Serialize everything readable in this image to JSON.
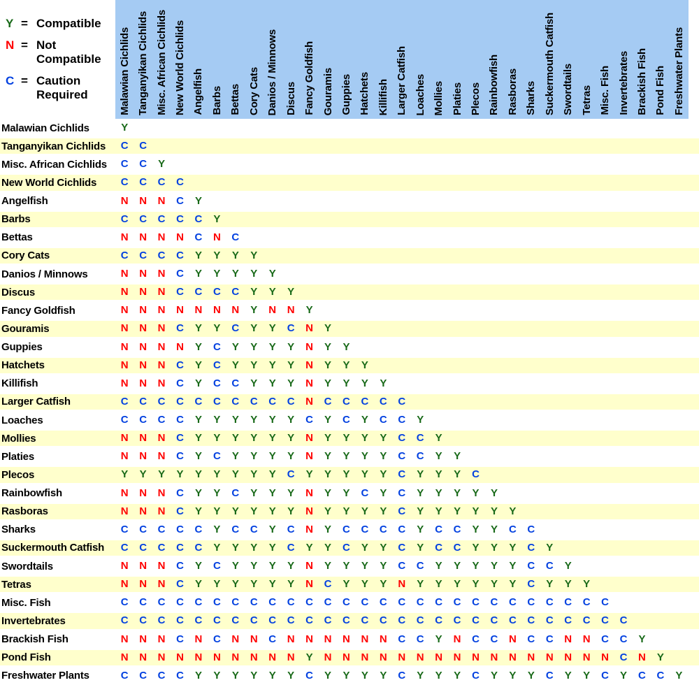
{
  "colors": {
    "header_bg": "#A5CBF3",
    "stripe_bg": "#FFFFCC",
    "compatible_green": "#186918",
    "not_compatible_red": "#FF0000",
    "caution_blue": "#0341E0"
  },
  "legend": {
    "equals": "=",
    "items": [
      {
        "symbol": "Y",
        "label": "Compatible"
      },
      {
        "symbol": "N",
        "label": "Not\nCompatible"
      },
      {
        "symbol": "C",
        "label": "Caution\nRequired"
      }
    ]
  },
  "chart_data": {
    "type": "table",
    "description": "Triangular species-by-species fish compatibility matrix",
    "legend": {
      "Y": "Compatible",
      "N": "Not Compatible",
      "C": "Caution Required"
    },
    "species": [
      "Malawian Cichlids",
      "Tanganyikan Cichlids",
      "Misc. African Cichlids",
      "New World Cichlids",
      "Angelfish",
      "Barbs",
      "Bettas",
      "Cory Cats",
      "Danios / Minnows",
      "Discus",
      "Fancy Goldfish",
      "Gouramis",
      "Guppies",
      "Hatchets",
      "Killifish",
      "Larger Catfish",
      "Loaches",
      "Mollies",
      "Platies",
      "Plecos",
      "Rainbowfish",
      "Rasboras",
      "Sharks",
      "Suckermouth Catfish",
      "Swordtails",
      "Tetras",
      "Misc. Fish",
      "Invertebrates",
      "Brackish Fish",
      "Pond Fish",
      "Freshwater Plants"
    ],
    "rows": [
      {
        "label": "Malawian Cichlids",
        "values": [
          "Y"
        ]
      },
      {
        "label": "Tanganyikan Cichlids",
        "values": [
          "C",
          "C"
        ]
      },
      {
        "label": "Misc. African Cichlids",
        "values": [
          "C",
          "C",
          "Y"
        ]
      },
      {
        "label": "New World Cichlids",
        "values": [
          "C",
          "C",
          "C",
          "C"
        ]
      },
      {
        "label": "Angelfish",
        "values": [
          "N",
          "N",
          "N",
          "C",
          "Y"
        ]
      },
      {
        "label": "Barbs",
        "values": [
          "C",
          "C",
          "C",
          "C",
          "C",
          "Y"
        ]
      },
      {
        "label": "Bettas",
        "values": [
          "N",
          "N",
          "N",
          "N",
          "C",
          "N",
          "C"
        ]
      },
      {
        "label": "Cory Cats",
        "values": [
          "C",
          "C",
          "C",
          "C",
          "Y",
          "Y",
          "Y",
          "Y"
        ]
      },
      {
        "label": "Danios / Minnows",
        "values": [
          "N",
          "N",
          "N",
          "C",
          "Y",
          "Y",
          "Y",
          "Y",
          "Y"
        ]
      },
      {
        "label": "Discus",
        "values": [
          "N",
          "N",
          "N",
          "C",
          "C",
          "C",
          "C",
          "Y",
          "Y",
          "Y"
        ]
      },
      {
        "label": "Fancy Goldfish",
        "values": [
          "N",
          "N",
          "N",
          "N",
          "N",
          "N",
          "N",
          "Y",
          "N",
          "N",
          "Y"
        ]
      },
      {
        "label": "Gouramis",
        "values": [
          "N",
          "N",
          "N",
          "C",
          "Y",
          "Y",
          "C",
          "Y",
          "Y",
          "C",
          "N",
          "Y"
        ]
      },
      {
        "label": "Guppies",
        "values": [
          "N",
          "N",
          "N",
          "N",
          "Y",
          "C",
          "Y",
          "Y",
          "Y",
          "Y",
          "N",
          "Y",
          "Y"
        ]
      },
      {
        "label": "Hatchets",
        "values": [
          "N",
          "N",
          "N",
          "C",
          "Y",
          "C",
          "Y",
          "Y",
          "Y",
          "Y",
          "N",
          "Y",
          "Y",
          "Y"
        ]
      },
      {
        "label": "Killifish",
        "values": [
          "N",
          "N",
          "N",
          "C",
          "Y",
          "C",
          "C",
          "Y",
          "Y",
          "Y",
          "N",
          "Y",
          "Y",
          "Y",
          "Y"
        ]
      },
      {
        "label": "Larger Catfish",
        "values": [
          "C",
          "C",
          "C",
          "C",
          "C",
          "C",
          "C",
          "C",
          "C",
          "C",
          "N",
          "C",
          "C",
          "C",
          "C",
          "C"
        ]
      },
      {
        "label": "Loaches",
        "values": [
          "C",
          "C",
          "C",
          "C",
          "Y",
          "Y",
          "Y",
          "Y",
          "Y",
          "Y",
          "C",
          "Y",
          "C",
          "Y",
          "C",
          "C",
          "Y"
        ]
      },
      {
        "label": "Mollies",
        "values": [
          "N",
          "N",
          "N",
          "C",
          "Y",
          "Y",
          "Y",
          "Y",
          "Y",
          "Y",
          "N",
          "Y",
          "Y",
          "Y",
          "Y",
          "C",
          "C",
          "Y"
        ]
      },
      {
        "label": "Platies",
        "values": [
          "N",
          "N",
          "N",
          "C",
          "Y",
          "C",
          "Y",
          "Y",
          "Y",
          "Y",
          "N",
          "Y",
          "Y",
          "Y",
          "Y",
          "C",
          "C",
          "Y",
          "Y"
        ]
      },
      {
        "label": "Plecos",
        "values": [
          "Y",
          "Y",
          "Y",
          "Y",
          "Y",
          "Y",
          "Y",
          "Y",
          "Y",
          "C",
          "Y",
          "Y",
          "Y",
          "Y",
          "Y",
          "C",
          "Y",
          "Y",
          "Y",
          "C"
        ]
      },
      {
        "label": "Rainbowfish",
        "values": [
          "N",
          "N",
          "N",
          "C",
          "Y",
          "Y",
          "C",
          "Y",
          "Y",
          "Y",
          "N",
          "Y",
          "Y",
          "C",
          "Y",
          "C",
          "Y",
          "Y",
          "Y",
          "Y",
          "Y"
        ]
      },
      {
        "label": "Rasboras",
        "values": [
          "N",
          "N",
          "N",
          "C",
          "Y",
          "Y",
          "Y",
          "Y",
          "Y",
          "Y",
          "N",
          "Y",
          "Y",
          "Y",
          "Y",
          "C",
          "Y",
          "Y",
          "Y",
          "Y",
          "Y",
          "Y"
        ]
      },
      {
        "label": "Sharks",
        "values": [
          "C",
          "C",
          "C",
          "C",
          "C",
          "Y",
          "C",
          "C",
          "Y",
          "C",
          "N",
          "Y",
          "C",
          "C",
          "C",
          "C",
          "Y",
          "C",
          "C",
          "Y",
          "Y",
          "C",
          "C"
        ]
      },
      {
        "label": "Suckermouth Catfish",
        "values": [
          "C",
          "C",
          "C",
          "C",
          "C",
          "Y",
          "Y",
          "Y",
          "Y",
          "C",
          "Y",
          "Y",
          "C",
          "Y",
          "Y",
          "C",
          "Y",
          "C",
          "C",
          "Y",
          "Y",
          "Y",
          "C",
          "Y"
        ]
      },
      {
        "label": "Swordtails",
        "values": [
          "N",
          "N",
          "N",
          "C",
          "Y",
          "C",
          "Y",
          "Y",
          "Y",
          "Y",
          "N",
          "Y",
          "Y",
          "Y",
          "Y",
          "C",
          "C",
          "Y",
          "Y",
          "Y",
          "Y",
          "Y",
          "C",
          "C",
          "Y"
        ]
      },
      {
        "label": "Tetras",
        "values": [
          "N",
          "N",
          "N",
          "C",
          "Y",
          "Y",
          "Y",
          "Y",
          "Y",
          "Y",
          "N",
          "C",
          "Y",
          "Y",
          "Y",
          "N",
          "Y",
          "Y",
          "Y",
          "Y",
          "Y",
          "Y",
          "C",
          "Y",
          "Y",
          "Y"
        ]
      },
      {
        "label": "Misc. Fish",
        "values": [
          "C",
          "C",
          "C",
          "C",
          "C",
          "C",
          "C",
          "C",
          "C",
          "C",
          "C",
          "C",
          "C",
          "C",
          "C",
          "C",
          "C",
          "C",
          "C",
          "C",
          "C",
          "C",
          "C",
          "C",
          "C",
          "C",
          "C"
        ]
      },
      {
        "label": "Invertebrates",
        "values": [
          "C",
          "C",
          "C",
          "C",
          "C",
          "C",
          "C",
          "C",
          "C",
          "C",
          "C",
          "C",
          "C",
          "C",
          "C",
          "C",
          "C",
          "C",
          "C",
          "C",
          "C",
          "C",
          "C",
          "C",
          "C",
          "C",
          "C",
          "C"
        ]
      },
      {
        "label": "Brackish Fish",
        "values": [
          "N",
          "N",
          "N",
          "C",
          "N",
          "C",
          "N",
          "N",
          "C",
          "N",
          "N",
          "N",
          "N",
          "N",
          "N",
          "C",
          "C",
          "Y",
          "N",
          "C",
          "C",
          "N",
          "C",
          "C",
          "N",
          "N",
          "C",
          "C",
          "Y"
        ]
      },
      {
        "label": "Pond Fish",
        "values": [
          "N",
          "N",
          "N",
          "N",
          "N",
          "N",
          "N",
          "N",
          "N",
          "N",
          "Y",
          "N",
          "N",
          "N",
          "N",
          "N",
          "N",
          "N",
          "N",
          "N",
          "N",
          "N",
          "N",
          "N",
          "N",
          "N",
          "N",
          "C",
          "N",
          "Y"
        ]
      },
      {
        "label": "Freshwater Plants",
        "values": [
          "C",
          "C",
          "C",
          "C",
          "Y",
          "Y",
          "Y",
          "Y",
          "Y",
          "Y",
          "C",
          "Y",
          "Y",
          "Y",
          "Y",
          "C",
          "Y",
          "Y",
          "Y",
          "C",
          "Y",
          "Y",
          "Y",
          "C",
          "Y",
          "Y",
          "C",
          "Y",
          "C",
          "C",
          "Y"
        ]
      }
    ]
  }
}
